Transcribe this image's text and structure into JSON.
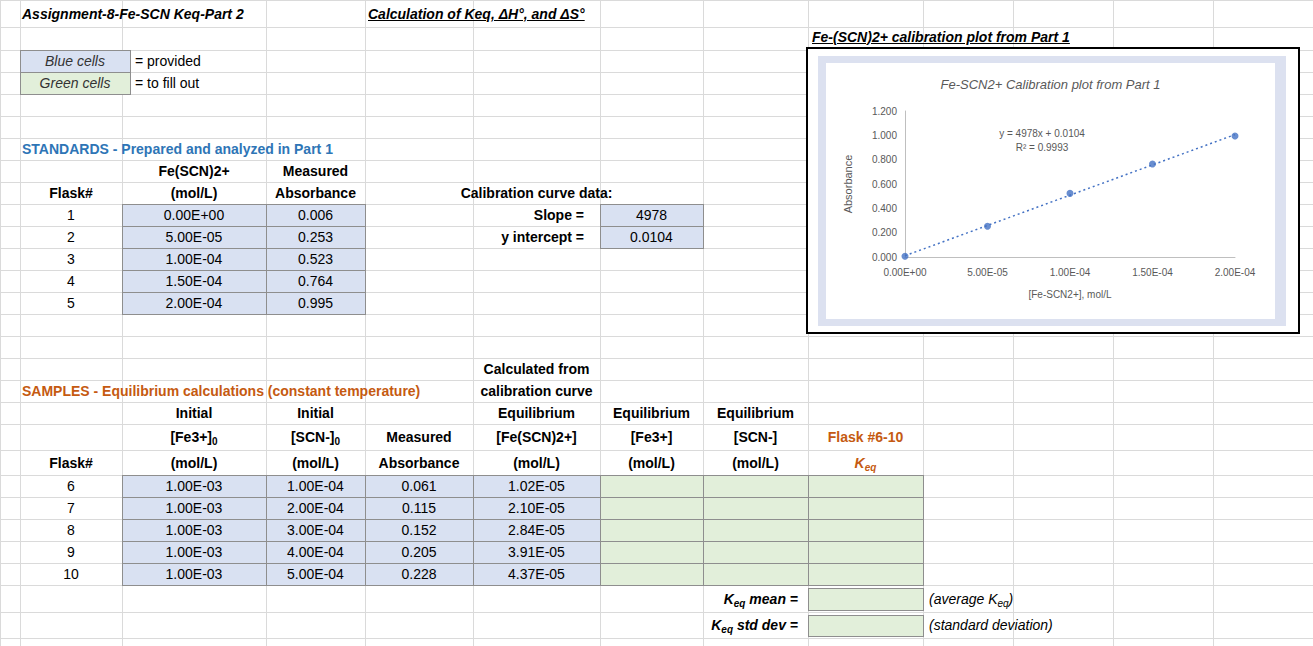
{
  "header": {
    "title": "Assignment-8-Fe-SCN Keq-Part 2",
    "subtitle": "Calculation of Keq, ΔH°, and ΔS°"
  },
  "key": [
    {
      "cell": "Blue cells",
      "text": "= provided",
      "color": "blue"
    },
    {
      "cell": "Green cells",
      "text": "= to fill out",
      "color": "green"
    }
  ],
  "standards": {
    "title": "STANDARDS - Prepared and analyzed in Part 1",
    "columns": [
      [
        "Flask#"
      ],
      [
        "Fe(SCN)2+",
        "(mol/L)"
      ],
      [
        "Measured",
        "Absorbance"
      ]
    ],
    "rows": [
      [
        "1",
        "0.00E+00",
        "0.006"
      ],
      [
        "2",
        "5.00E-05",
        "0.253"
      ],
      [
        "3",
        "1.00E-04",
        "0.523"
      ],
      [
        "4",
        "1.50E-04",
        "0.764"
      ],
      [
        "5",
        "2.00E-04",
        "0.995"
      ]
    ]
  },
  "calibration": {
    "title": "Calibration curve data:",
    "rows": [
      [
        "Slope =",
        "4978"
      ],
      [
        "y intercept =",
        "0.0104"
      ]
    ]
  },
  "samples": {
    "title": "SAMPLES - Equilibrium calculations (constant temperature)",
    "note": [
      "Calculated from",
      "calibration curve"
    ],
    "columns": [
      [
        "Flask#"
      ],
      [
        "Initial",
        [
          {
            "text": "[Fe3+]"
          },
          {
            "sub": "0"
          }
        ],
        "(mol/L)"
      ],
      [
        "Initial",
        [
          {
            "text": "[SCN-]"
          },
          {
            "sub": "0"
          }
        ],
        "(mol/L)"
      ],
      [
        "Measured",
        "Absorbance"
      ],
      [
        "Equilibrium",
        "[Fe(SCN)2+]",
        "(mol/L)"
      ],
      [
        "Equilibrium",
        "[Fe3+]",
        "(mol/L)"
      ],
      [
        "Equilibrium",
        "[SCN-]",
        "(mol/L)"
      ],
      [
        "Flask #6-10",
        [
          {
            "text": "K"
          },
          {
            "sub": "eq"
          }
        ]
      ]
    ],
    "rows": [
      [
        "6",
        "1.00E-03",
        "1.00E-04",
        "0.061",
        "1.02E-05"
      ],
      [
        "7",
        "1.00E-03",
        "2.00E-04",
        "0.115",
        "2.10E-05"
      ],
      [
        "8",
        "1.00E-03",
        "3.00E-04",
        "0.152",
        "2.84E-05"
      ],
      [
        "9",
        "1.00E-03",
        "4.00E-04",
        "0.205",
        "3.91E-05"
      ],
      [
        "10",
        "1.00E-03",
        "5.00E-04",
        "0.228",
        "4.37E-05"
      ]
    ],
    "summary": [
      {
        "label": [
          {
            "text": "K"
          },
          {
            "sub": "eq"
          },
          {
            "text": " mean ="
          }
        ],
        "note": [
          {
            "text": "(average K"
          },
          {
            "sub": "eq"
          },
          {
            "text": ")"
          }
        ]
      },
      {
        "label": [
          {
            "text": "K"
          },
          {
            "sub": "eq"
          },
          {
            "text": " std dev ="
          }
        ],
        "note": [
          {
            "text": "(standard deviation)"
          }
        ]
      }
    ]
  },
  "chart_data": {
    "type": "scatter",
    "frame_title": "Fe-(SCN)2+ calibration plot from Part 1",
    "title": "Fe-SCN2+ Calibration plot from Part 1",
    "x_label": "[Fe-SCN2+], mol/L",
    "y_label": "Absorbance",
    "x": [
      0,
      5e-05,
      0.0001,
      0.00015,
      0.0002
    ],
    "values": [
      0.006,
      0.253,
      0.523,
      0.764,
      0.995
    ],
    "color": "#4472c4",
    "marker": "circle",
    "xlim": [
      0,
      0.0002
    ],
    "ylim": [
      0,
      1.2
    ],
    "xticks": [
      {
        "value": 0,
        "label": "0.00E+00"
      },
      {
        "value": 5e-05,
        "label": "5.00E-05"
      },
      {
        "value": 0.0001,
        "label": "1.00E-04"
      },
      {
        "value": 0.00015,
        "label": "1.50E-04"
      },
      {
        "value": 0.0002,
        "label": "2.00E-04"
      }
    ],
    "yticks": [
      {
        "value": 0,
        "label": "0.000"
      },
      {
        "value": 0.2,
        "label": "0.200"
      },
      {
        "value": 0.4,
        "label": "0.400"
      },
      {
        "value": 0.6,
        "label": "0.600"
      },
      {
        "value": 0.8,
        "label": "0.800"
      },
      {
        "value": 1,
        "label": "1.000"
      },
      {
        "value": 1.2,
        "label": "1.200"
      }
    ],
    "grid": false,
    "trendline": {
      "slope": 4978,
      "intercept": 0.0104,
      "line_style": "dotted",
      "labels": [
        "y = 4978x + 0.0104",
        "R² = 0.9993"
      ]
    }
  }
}
